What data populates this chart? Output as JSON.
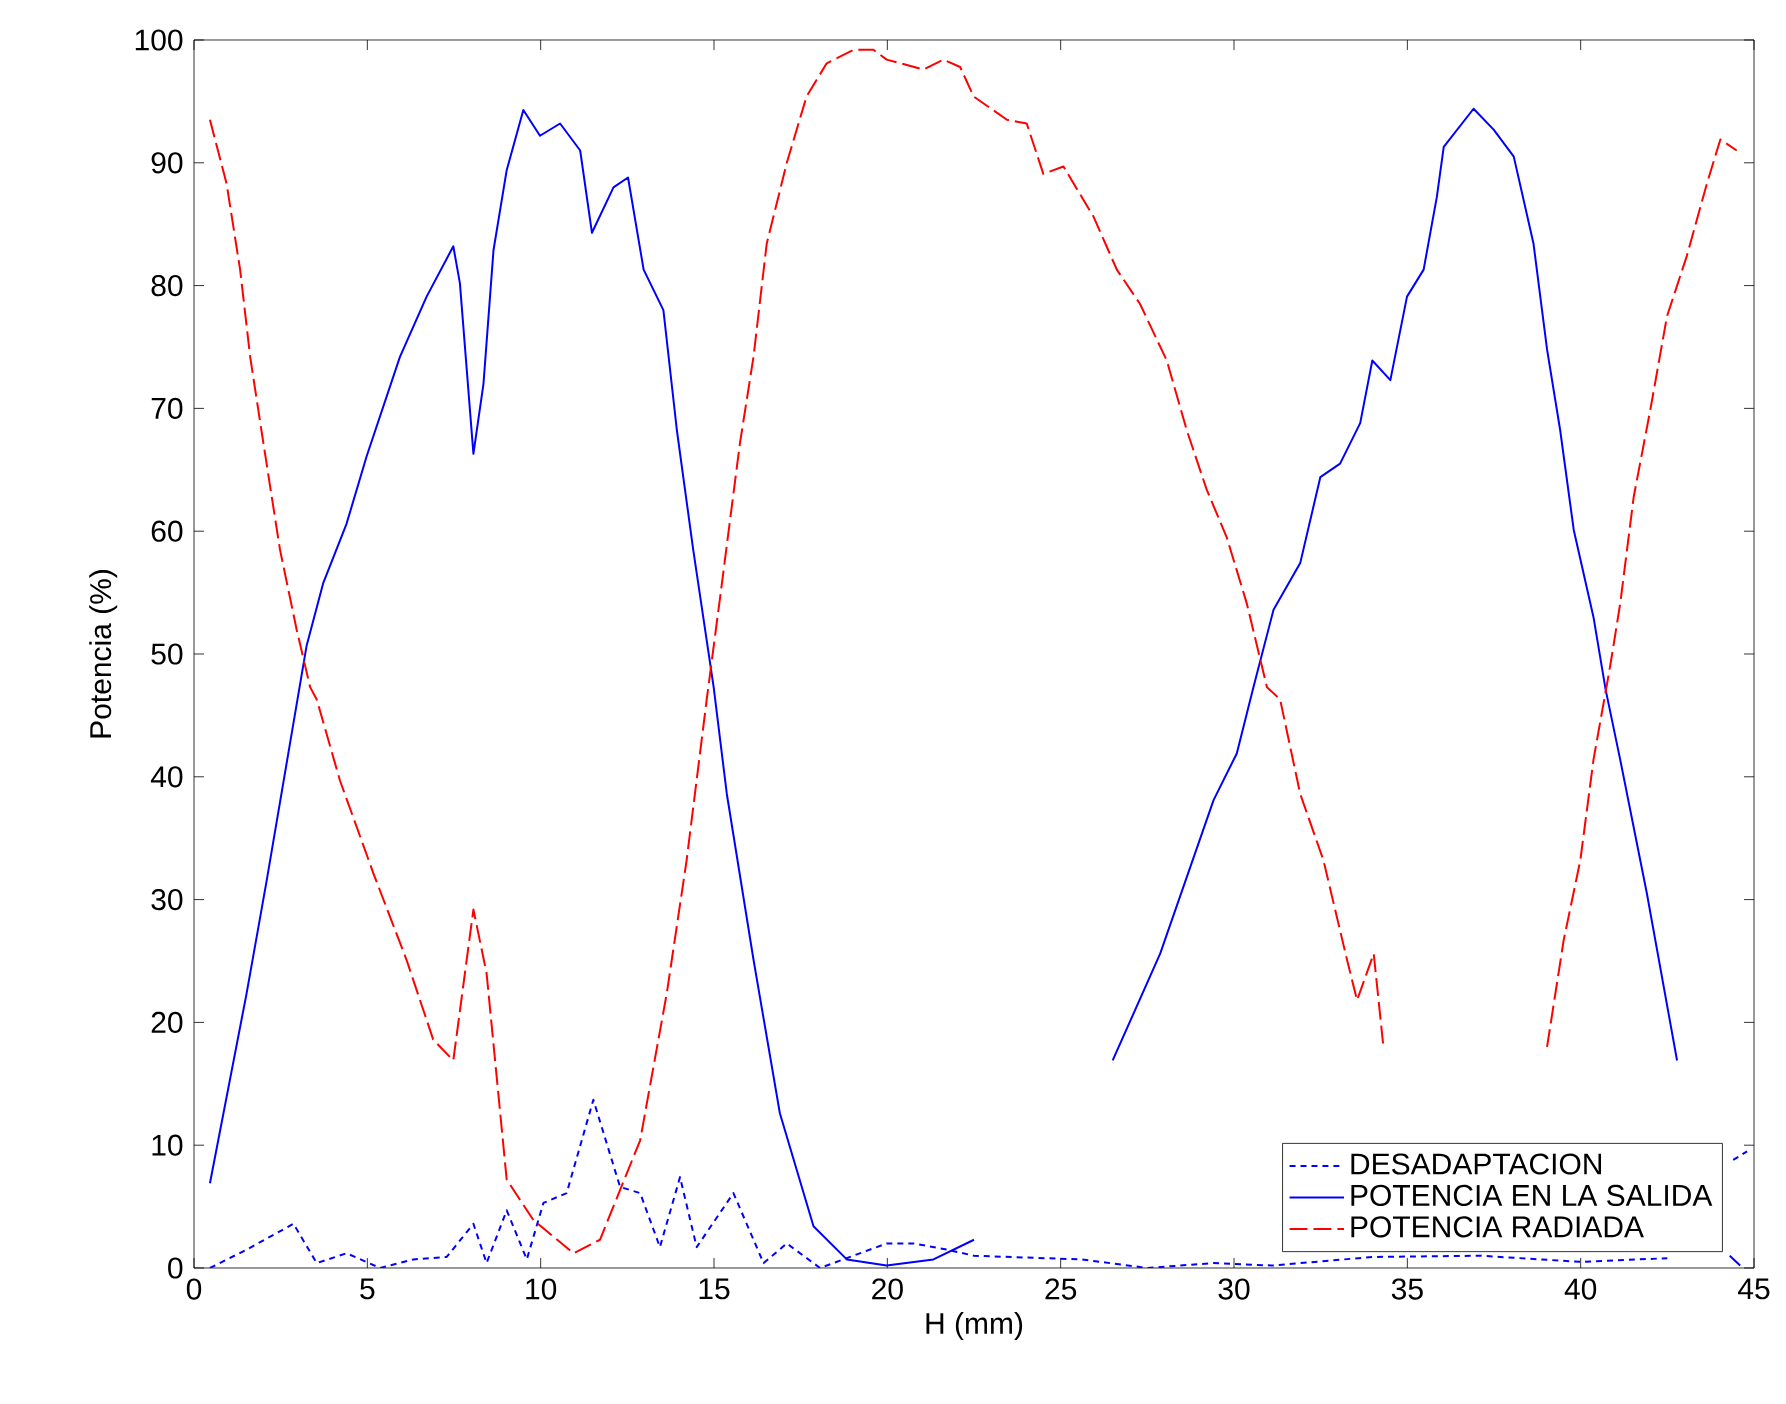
{
  "chart_data": {
    "type": "line",
    "xlabel": "H (mm)",
    "ylabel": "Potencia (%)",
    "xlim": [
      0,
      45
    ],
    "ylim": [
      0,
      100
    ],
    "xticks": [
      0,
      5,
      10,
      15,
      20,
      25,
      30,
      35,
      40,
      45
    ],
    "yticks": [
      0,
      10,
      20,
      30,
      40,
      50,
      60,
      70,
      80,
      90,
      100
    ],
    "legend": "bottom right",
    "series": [
      {
        "name": "DESADAPTACION",
        "color": "#0000ff",
        "line_style": "dotted",
        "x": [
          0.46,
          1.52,
          2.87,
          3.54,
          4.4,
          5.37,
          6.33,
          7.29,
          8.06,
          8.44,
          9.02,
          9.6,
          10.08,
          10.75,
          11.52,
          12.29,
          12.87,
          13.44,
          14.02,
          14.5,
          15.56,
          16.43,
          17.1,
          18.06,
          19.98,
          20.75,
          21.71,
          22.5,
          25.6,
          27.5,
          29.4,
          31.1,
          34.0,
          37.1,
          40.0,
          42.5,
          43.8,
          44.4,
          44.8
        ],
        "values": [
          0,
          1.5,
          3.6,
          0.4,
          1.2,
          0,
          0.7,
          0.9,
          3.6,
          0.4,
          4.7,
          0.7,
          5.3,
          6.1,
          13.7,
          6.6,
          6.1,
          1.7,
          7.4,
          1.7,
          6.1,
          0.4,
          2,
          0,
          2,
          2,
          1.5,
          1.0,
          0.7,
          0,
          0.4,
          0.2,
          0.9,
          1.0,
          0.5,
          0.8,
          null,
          8.8,
          9.5
        ]
      },
      {
        "name": "POTENCIA EN LA SALIDA",
        "color": "#0000ff",
        "line_style": "solid",
        "x": [
          0.46,
          1.52,
          2.1,
          3.25,
          3.73,
          4.4,
          4.98,
          5.94,
          6.71,
          7.48,
          7.67,
          8.06,
          8.35,
          8.64,
          9.02,
          9.5,
          9.98,
          10.56,
          11.14,
          11.48,
          12.1,
          12.52,
          12.97,
          13.54,
          13.93,
          14.4,
          14.99,
          15.37,
          16.14,
          16.9,
          17.87,
          18.83,
          19.98,
          21.33,
          22.5,
          24.5,
          26.5,
          27.87,
          29.41,
          30.08,
          30.56,
          31.14,
          31.91,
          32.49,
          33.06,
          33.64,
          33.99,
          34.51,
          34.99,
          35.47,
          35.85,
          36.05,
          36.91,
          37.49,
          38.07,
          38.64,
          39.03,
          39.41,
          39.8,
          40.37,
          40.72,
          41.14,
          41.91,
          42.78,
          43.6,
          44.3,
          44.6
        ],
        "values": [
          6.9,
          22.4,
          31.6,
          50.7,
          55.8,
          60.6,
          66.1,
          74.2,
          79.1,
          83.2,
          80.2,
          66.3,
          72,
          82.9,
          89.4,
          94.3,
          92.2,
          93.2,
          91,
          84.3,
          88,
          88.8,
          81.3,
          78,
          68.2,
          58.5,
          47.3,
          38.6,
          25.1,
          12.6,
          3.4,
          0.7,
          0.2,
          0.7,
          2.3,
          null,
          16.9,
          25.6,
          38.1,
          41.9,
          47.3,
          53.6,
          57.4,
          64.4,
          65.5,
          68.8,
          73.9,
          72.3,
          79.1,
          81.3,
          87.2,
          91.3,
          94.4,
          92.7,
          90.5,
          83.4,
          74.8,
          68.2,
          60.1,
          53,
          47.1,
          41.4,
          30.5,
          16.9,
          null,
          1.0,
          0.2
        ]
      },
      {
        "name": "POTENCIA RADIADA",
        "color": "#ff0000",
        "line_style": "dashed",
        "x": [
          0.46,
          0.94,
          1.33,
          1.62,
          2.0,
          2.48,
          2.96,
          3.35,
          3.54,
          4.21,
          5.18,
          6.13,
          6.9,
          7.48,
          8.06,
          8.44,
          9.02,
          9.79,
          10.95,
          11.71,
          12.87,
          13.64,
          14.21,
          14.79,
          15.18,
          15.75,
          16.14,
          16.52,
          17.1,
          17.67,
          18.25,
          19.02,
          19.6,
          19.98,
          21.04,
          21.62,
          22.1,
          22.49,
          23.45,
          24.02,
          24.5,
          25.08,
          25.95,
          26.62,
          27.29,
          28.06,
          28.64,
          29.21,
          29.79,
          30.37,
          30.95,
          31.33,
          31.91,
          32.58,
          33.26,
          33.55,
          34.03,
          34.31,
          36.5,
          39.03,
          39.51,
          39.99,
          40.37,
          40.85,
          41.14,
          41.53,
          42.01,
          42.49,
          43.06,
          43.64,
          44.03,
          44.5
        ],
        "values": [
          93.5,
          88.3,
          81.3,
          74.2,
          67.2,
          58.5,
          52,
          47.3,
          46.3,
          39.7,
          32.1,
          25.1,
          18.6,
          16.9,
          29.2,
          24,
          7.2,
          3.9,
          1.2,
          2.3,
          10.4,
          22.4,
          33.2,
          46.3,
          54.7,
          67.2,
          74.2,
          83.4,
          90,
          95.4,
          98.1,
          99.2,
          99.2,
          98.4,
          97.6,
          98.4,
          97.8,
          95.4,
          93.5,
          93.2,
          89.1,
          89.7,
          85.6,
          81.3,
          78.5,
          73.9,
          68.2,
          63.4,
          59.5,
          54.1,
          47.3,
          46.3,
          38.6,
          33.2,
          25.1,
          21.8,
          25.6,
          18,
          null,
          18,
          26.7,
          33.2,
          41.4,
          49,
          54.1,
          62.8,
          69.9,
          77.5,
          82.4,
          88.3,
          91.9,
          91
        ]
      }
    ]
  }
}
